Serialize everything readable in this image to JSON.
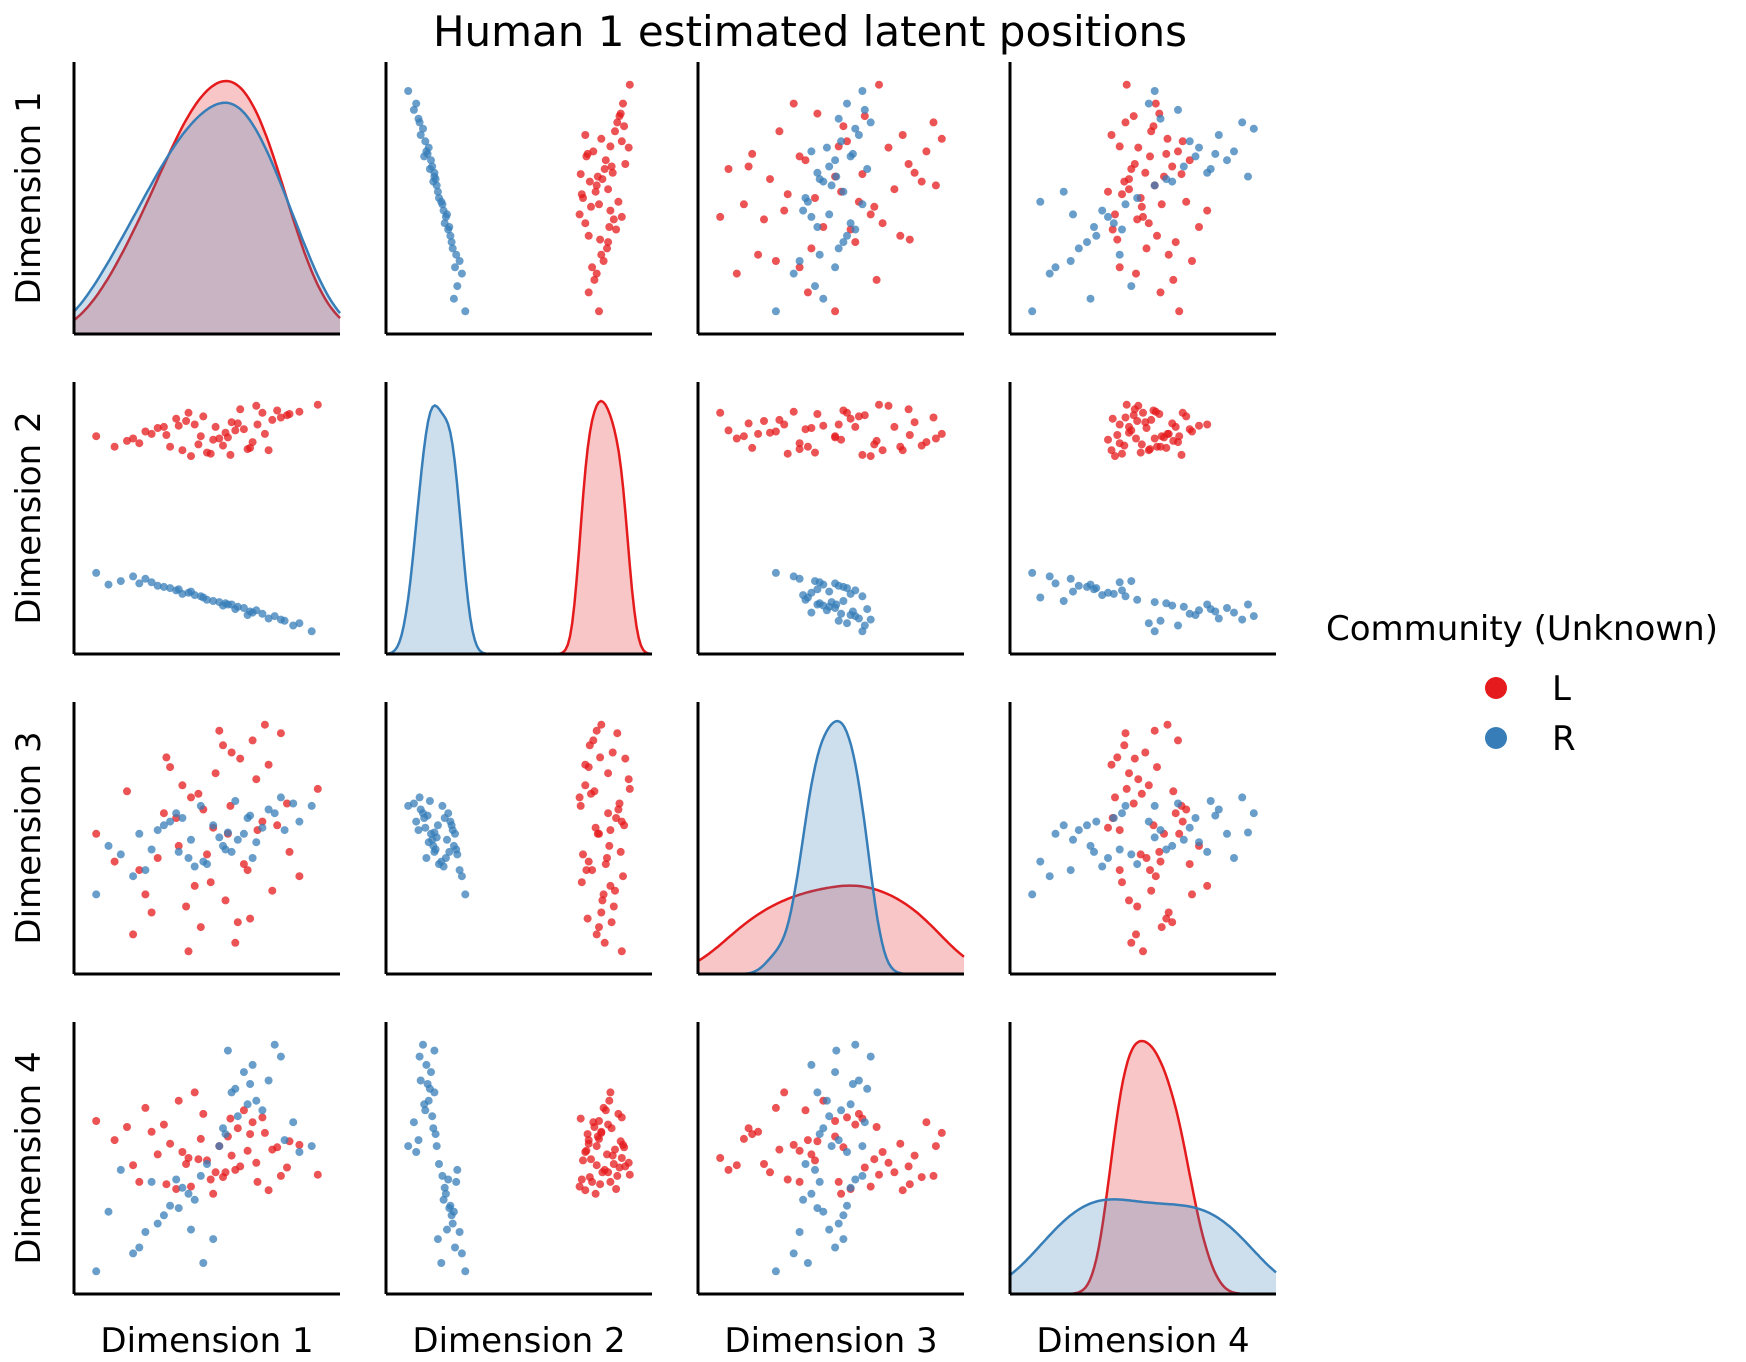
{
  "chart_data": {
    "type": "scatter",
    "subtype": "pairplot",
    "title": "Human 1 estimated latent positions",
    "variables": [
      "Dimension 1",
      "Dimension 2",
      "Dimension 3",
      "Dimension 4"
    ],
    "diagonal_kind": "kde",
    "hue": "Community (Unknown)",
    "legend": {
      "title": "Community (Unknown)",
      "placement": "right",
      "entries": [
        {
          "label": "L",
          "color": "#e41a1c"
        },
        {
          "label": "R",
          "color": "#377eb8"
        }
      ]
    },
    "ticks_shown": false,
    "grid": false,
    "series": [
      {
        "name": "L",
        "color": "#e41a1c",
        "points": [
          [
            -0.95,
            0.72,
            0.05,
            0.31
          ],
          [
            0.22,
            0.95,
            0.67,
            -0.07
          ],
          [
            -0.15,
            0.82,
            -0.38,
            0.55
          ],
          [
            0.05,
            0.7,
            0.9,
            0.1
          ],
          [
            -0.05,
            0.58,
            -0.12,
            -0.02
          ],
          [
            0.55,
            0.88,
            0.88,
            -0.15
          ],
          [
            0.3,
            0.62,
            -0.65,
            0.2
          ],
          [
            -0.4,
            0.8,
            0.22,
            0.28
          ],
          [
            0.1,
            0.75,
            -0.5,
            -0.12
          ],
          [
            -0.25,
            0.6,
            0.45,
            0.05
          ],
          [
            0.4,
            0.92,
            0.15,
            0.34
          ],
          [
            -0.6,
            0.66,
            -0.25,
            -0.2
          ],
          [
            0.15,
            0.84,
            0.72,
            0.02
          ],
          [
            -0.1,
            0.72,
            -0.72,
            0.16
          ],
          [
            0.6,
            0.9,
            0.3,
            -0.08
          ],
          [
            -0.35,
            0.63,
            0.6,
            0.12
          ],
          [
            0.25,
            0.78,
            -0.2,
            0.4
          ],
          [
            -0.18,
            0.55,
            0.35,
            -0.24
          ],
          [
            0.48,
            0.86,
            -0.42,
            0.07
          ],
          [
            0.0,
            0.69,
            0.1,
            -0.3
          ],
          [
            -0.5,
            0.74,
            -0.6,
            0.22
          ],
          [
            0.35,
            0.98,
            0.5,
            -0.04
          ],
          [
            -0.28,
            0.81,
            -0.05,
            0.48
          ],
          [
            0.08,
            0.64,
            0.78,
            -0.16
          ],
          [
            0.7,
            0.93,
            -0.3,
            0.11
          ],
          [
            -0.7,
            0.68,
            0.4,
            0.26
          ],
          [
            0.18,
            0.77,
            -0.85,
            -0.1
          ],
          [
            -0.08,
            0.89,
            0.25,
            0.37
          ],
          [
            0.45,
            0.6,
            0.62,
            -0.27
          ],
          [
            -0.45,
            0.79,
            -0.15,
            0.03
          ],
          [
            0.12,
            0.71,
            0.05,
            0.18
          ],
          [
            -0.22,
            0.85,
            -0.55,
            -0.05
          ],
          [
            0.32,
            0.67,
            0.82,
            0.3
          ],
          [
            -0.02,
            0.57,
            -0.35,
            -0.18
          ],
          [
            0.52,
            0.94,
            0.12,
            0.09
          ],
          [
            -0.38,
            0.73,
            0.68,
            -0.22
          ],
          [
            0.2,
            0.83,
            -0.68,
            0.25
          ],
          [
            -0.12,
            0.65,
            0.38,
            -0.01
          ],
          [
            0.62,
            0.91,
            -0.1,
            0.14
          ],
          [
            -0.55,
            0.76,
            -0.45,
            0.42
          ],
          [
            0.02,
            0.8,
            0.55,
            -0.12
          ],
          [
            0.28,
            0.61,
            -0.25,
            0.06
          ],
          [
            -0.3,
            0.87,
            0.18,
            -0.26
          ],
          [
            0.42,
            0.74,
            0.95,
            0.21
          ],
          [
            -0.65,
            0.7,
            -0.78,
            -0.06
          ],
          [
            0.14,
            0.56,
            0.28,
            0.33
          ],
          [
            -0.2,
            0.92,
            -0.92,
            0.0
          ],
          [
            0.85,
            0.99,
            0.42,
            -0.14
          ],
          [
            -0.8,
            0.63,
            -0.18,
            0.15
          ],
          [
            0.36,
            0.82,
            0.08,
            -0.2
          ]
        ]
      },
      {
        "name": "R",
        "color": "#377eb8",
        "points": [
          [
            -0.85,
            -0.55,
            -0.05,
            -0.45
          ],
          [
            0.3,
            -0.78,
            0.2,
            0.62
          ],
          [
            -0.2,
            -0.62,
            -0.15,
            -0.3
          ],
          [
            0.55,
            -0.85,
            0.35,
            0.85
          ],
          [
            0.05,
            -0.7,
            0.02,
            0.1
          ],
          [
            -0.55,
            -0.5,
            -0.25,
            -0.62
          ],
          [
            0.4,
            -0.8,
            0.1,
            0.4
          ],
          [
            -0.1,
            -0.65,
            0.28,
            -0.15
          ],
          [
            0.15,
            -0.72,
            -0.1,
            0.55
          ],
          [
            -0.35,
            -0.58,
            0.15,
            -0.4
          ],
          [
            0.65,
            -0.9,
            0.3,
            0.3
          ],
          [
            -0.65,
            -0.48,
            -0.3,
            -0.8
          ],
          [
            0.25,
            -0.75,
            0.05,
            0.72
          ],
          [
            -0.05,
            -0.68,
            -0.2,
            -0.05
          ],
          [
            0.5,
            -0.82,
            0.22,
            0.95
          ],
          [
            -0.45,
            -0.56,
            0.08,
            -0.55
          ],
          [
            0.1,
            -0.71,
            -0.08,
            0.2
          ],
          [
            -0.25,
            -0.63,
            0.18,
            -0.25
          ],
          [
            0.35,
            -0.77,
            -0.02,
            0.48
          ],
          [
            0.0,
            -0.69,
            0.12,
            -0.68
          ],
          [
            -0.75,
            -0.52,
            -0.12,
            -0.1
          ],
          [
            0.45,
            -0.84,
            0.25,
            0.65
          ],
          [
            -0.15,
            -0.64,
            -0.22,
            -0.35
          ],
          [
            0.2,
            -0.74,
            0.0,
            0.35
          ],
          [
            0.7,
            -0.88,
            0.15,
            0.05
          ],
          [
            -0.6,
            -0.54,
            0.05,
            -0.75
          ],
          [
            0.32,
            -0.79,
            -0.15,
            0.78
          ],
          [
            -0.3,
            -0.6,
            0.22,
            -0.18
          ],
          [
            0.08,
            -0.73,
            -0.05,
            0.25
          ],
          [
            -0.4,
            -0.57,
            0.12,
            -0.48
          ],
          [
            0.58,
            -0.86,
            0.08,
            0.15
          ],
          [
            -0.08,
            -0.66,
            -0.18,
            -0.88
          ],
          [
            0.18,
            -0.76,
            0.32,
            0.58
          ],
          [
            -0.5,
            -0.53,
            -0.08,
            -0.2
          ],
          [
            0.28,
            -0.81,
            0.18,
            0.45
          ],
          [
            -0.18,
            -0.61,
            0.0,
            -0.6
          ],
          [
            0.8,
            -0.95,
            0.28,
            0.1
          ],
          [
            -0.95,
            -0.45,
            -0.45,
            -0.95
          ],
          [
            0.12,
            -0.72,
            0.06,
            0.9
          ],
          [
            -0.28,
            -0.59,
            -0.1,
            -0.42
          ]
        ]
      }
    ]
  }
}
